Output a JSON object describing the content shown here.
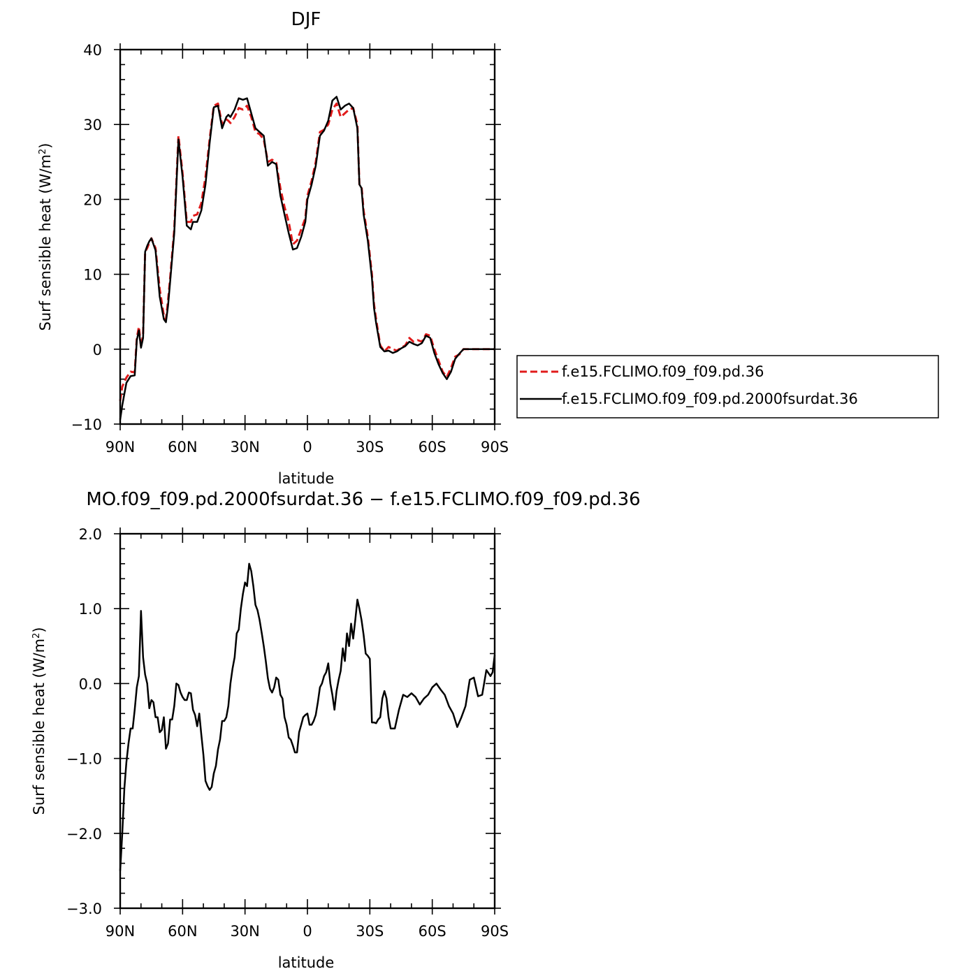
{
  "colors": {
    "control": "#e11b1b",
    "test": "#000000",
    "axis": "#000000"
  },
  "chart_data": [
    {
      "type": "line",
      "title": "DJF",
      "xlabel": "latitude",
      "ylabel": "Surf sensible heat (W/m",
      "ylabel_sup": "2",
      "ylabel_close": ")",
      "xlim": [
        90,
        -90
      ],
      "ylim": [
        -10,
        40
      ],
      "xticks": [
        90,
        60,
        30,
        0,
        -30,
        -60,
        -90
      ],
      "xtick_labels": [
        "90N",
        "60N",
        "30N",
        "0",
        "30S",
        "60S",
        "90S"
      ],
      "yticks": [
        -10,
        0,
        10,
        20,
        30,
        40
      ],
      "ytick_labels": [
        "−10",
        "0",
        "10",
        "20",
        "30",
        "40"
      ],
      "legend_position": "right",
      "series": [
        {
          "name": "f.e15.FCLIMO.f09_f09.pd.36",
          "color": "#e11b1b",
          "dash": true,
          "x": [
            90,
            89,
            87,
            85,
            83,
            82,
            81,
            80,
            79,
            78,
            77,
            76,
            75,
            73,
            71,
            69,
            68,
            67,
            66,
            64,
            62,
            60,
            58,
            56,
            55,
            53,
            51,
            49,
            47,
            45,
            43,
            41,
            39,
            38,
            37,
            35,
            33,
            31,
            29,
            27,
            25,
            23,
            21,
            19,
            17,
            15,
            13,
            11,
            9,
            7,
            5,
            3,
            1,
            0,
            -2,
            -4,
            -6,
            -8,
            -10,
            -12,
            -14,
            -16,
            -18,
            -20,
            -22,
            -24,
            -25,
            -26,
            -27,
            -29,
            -31,
            -32,
            -33,
            -35,
            -37,
            -39,
            -41,
            -43,
            -45,
            -47,
            -49,
            -51,
            -53,
            -55,
            -57,
            -59,
            -61,
            -63,
            -65,
            -67,
            -69,
            -71,
            -73,
            -75,
            -77,
            -79,
            -81,
            -83,
            -85,
            -87,
            -89,
            -90
          ],
          "y": [
            -6.9,
            -5.0,
            -3.8,
            -3.0,
            -3.1,
            1.5,
            3.0,
            0.3,
            2.0,
            13.0,
            13.5,
            14.2,
            14.8,
            13.5,
            8.0,
            4.5,
            4.0,
            6.5,
            9.5,
            16.0,
            28.5,
            23.5,
            17.0,
            17.0,
            17.8,
            18.0,
            19.5,
            23.0,
            28.0,
            32.5,
            32.8,
            30.0,
            30.7,
            30.5,
            30.2,
            31.0,
            32.2,
            32.0,
            32.5,
            31.0,
            29.0,
            28.7,
            28.0,
            25.0,
            25.3,
            24.9,
            21.5,
            19.0,
            17.0,
            14.0,
            14.5,
            16.0,
            17.5,
            20.5,
            22.5,
            25.0,
            29.0,
            29.3,
            30.0,
            32.0,
            32.8,
            31.0,
            31.5,
            32.0,
            32.2,
            30.0,
            22.0,
            21.8,
            18.5,
            15.0,
            10.0,
            6.0,
            4.0,
            0.5,
            -0.3,
            0.3,
            0.0,
            -0.2,
            0.2,
            0.5,
            1.5,
            1.0,
            1.2,
            1.0,
            2.0,
            1.8,
            0.0,
            -1.5,
            -3.0,
            -3.7,
            -2.5,
            -1.0,
            -0.7,
            0,
            0,
            0,
            0,
            0,
            0,
            0,
            0,
            0
          ],
          "_note": "values read from plot"
        },
        {
          "name": "f.e15.FCLIMO.f09_f09.pd.2000fsurdat.36",
          "color": "#000000",
          "dash": false,
          "x": [
            90,
            89,
            87,
            85,
            83,
            82,
            81,
            80,
            79,
            78,
            77,
            76,
            75,
            73,
            71,
            69,
            68,
            67,
            66,
            64,
            62,
            60,
            58,
            56,
            55,
            53,
            51,
            49,
            47,
            45,
            43,
            41,
            39,
            38,
            37,
            35,
            33,
            31,
            29,
            27,
            25,
            23,
            21,
            19,
            17,
            15,
            13,
            11,
            9,
            7,
            5,
            3,
            1,
            0,
            -2,
            -4,
            -6,
            -8,
            -10,
            -12,
            -14,
            -16,
            -18,
            -20,
            -22,
            -24,
            -25,
            -26,
            -27,
            -29,
            -31,
            -32,
            -33,
            -35,
            -37,
            -39,
            -41,
            -43,
            -45,
            -47,
            -49,
            -51,
            -53,
            -55,
            -57,
            -59,
            -61,
            -63,
            -65,
            -67,
            -69,
            -71,
            -73,
            -75,
            -77,
            -79,
            -81,
            -83,
            -85,
            -87,
            -89,
            -90
          ],
          "y": [
            -9.4,
            -7.5,
            -4.5,
            -3.6,
            -3.5,
            1.2,
            2.5,
            0.2,
            1.5,
            13.0,
            13.8,
            14.4,
            14.8,
            13.2,
            7.0,
            4.0,
            3.6,
            5.8,
            9.0,
            15.5,
            28.0,
            23.0,
            16.5,
            16.0,
            17.0,
            17.0,
            18.5,
            22.0,
            27.5,
            32.3,
            32.5,
            29.5,
            31.0,
            31.3,
            31.0,
            32.0,
            33.5,
            33.3,
            33.5,
            31.5,
            29.5,
            29.0,
            28.5,
            24.5,
            25.0,
            24.7,
            20.5,
            18.0,
            15.5,
            13.3,
            13.5,
            15.0,
            17.0,
            20.0,
            22.0,
            24.5,
            28.5,
            29.2,
            30.5,
            33.2,
            33.7,
            32.0,
            32.5,
            32.8,
            32.2,
            29.5,
            22.0,
            21.5,
            18.0,
            14.5,
            9.5,
            5.5,
            3.5,
            0.3,
            -0.3,
            -0.2,
            -0.5,
            -0.3,
            0.1,
            0.4,
            1.0,
            0.7,
            0.5,
            0.8,
            1.8,
            1.5,
            -0.5,
            -2.0,
            -3.2,
            -4.0,
            -3.0,
            -1.3,
            -0.6,
            0,
            0,
            0,
            0,
            0,
            0,
            0,
            0,
            0
          ]
        }
      ]
    },
    {
      "type": "line",
      "title": "MO.f09_f09.pd.2000fsurdat.36 − f.e15.FCLIMO.f09_f09.pd.36",
      "xlabel": "latitude",
      "ylabel": "Surf sensible heat (W/m",
      "ylabel_sup": "2",
      "ylabel_close": ")",
      "xlim": [
        90,
        -90
      ],
      "ylim": [
        -3,
        2
      ],
      "xticks": [
        90,
        60,
        30,
        0,
        -30,
        -60,
        -90
      ],
      "xtick_labels": [
        "90N",
        "60N",
        "30N",
        "0",
        "30S",
        "60S",
        "90S"
      ],
      "yticks": [
        -3,
        -2,
        -1,
        0,
        1,
        2
      ],
      "ytick_labels": [
        "−3.0",
        "−2.0",
        "−1.0",
        "0.0",
        "1.0",
        "2.0"
      ],
      "series": [
        {
          "color": "#000000",
          "dash": false,
          "x": [
            90,
            89,
            88,
            87,
            86,
            85,
            84,
            83,
            82,
            81,
            80,
            79,
            78,
            77,
            76,
            75,
            74,
            73,
            72,
            71,
            70,
            69,
            68,
            67,
            66,
            65,
            64,
            63,
            62,
            61,
            60,
            59,
            58,
            57,
            56,
            55,
            54,
            53,
            52,
            51,
            50,
            49,
            48,
            47,
            46,
            45,
            44,
            43,
            42,
            41,
            40,
            39,
            38,
            37,
            36,
            35,
            34,
            33,
            32,
            31,
            30,
            29,
            28,
            27,
            26,
            25,
            24,
            23,
            22,
            21,
            20,
            19,
            18,
            17,
            16,
            15,
            14,
            13,
            12,
            11,
            10,
            9,
            8,
            7,
            6,
            5,
            4,
            3,
            2,
            1,
            0,
            -1,
            -2,
            -3,
            -4,
            -5,
            -6,
            -7,
            -8,
            -9,
            -10,
            -11,
            -12,
            -13,
            -14,
            -15,
            -16,
            -17,
            -18,
            -19,
            -20,
            -21,
            -22,
            -23,
            -24,
            -25,
            -26,
            -27,
            -28,
            -29,
            -30,
            -31,
            -32,
            -33,
            -34,
            -35,
            -36,
            -37,
            -38,
            -39,
            -40,
            -42,
            -44,
            -46,
            -48,
            -50,
            -52,
            -54,
            -56,
            -58,
            -60,
            -62,
            -64,
            -66,
            -68,
            -70,
            -72,
            -74,
            -76,
            -78,
            -80,
            -82,
            -84,
            -86,
            -88,
            -89,
            -90
          ],
          "y": [
            -2.5,
            -2.0,
            -1.4,
            -1.05,
            -0.8,
            -0.6,
            -0.6,
            -0.35,
            -0.05,
            0.1,
            0.97,
            0.35,
            0.12,
            0.0,
            -0.33,
            -0.22,
            -0.25,
            -0.45,
            -0.45,
            -0.65,
            -0.62,
            -0.45,
            -0.87,
            -0.8,
            -0.48,
            -0.48,
            -0.3,
            0.0,
            -0.02,
            -0.12,
            -0.18,
            -0.22,
            -0.22,
            -0.12,
            -0.13,
            -0.35,
            -0.42,
            -0.57,
            -0.4,
            -0.68,
            -0.95,
            -1.3,
            -1.37,
            -1.42,
            -1.38,
            -1.2,
            -1.1,
            -0.88,
            -0.75,
            -0.5,
            -0.5,
            -0.45,
            -0.3,
            0.0,
            0.2,
            0.35,
            0.67,
            0.72,
            1.0,
            1.2,
            1.35,
            1.3,
            1.6,
            1.5,
            1.3,
            1.05,
            0.98,
            0.85,
            0.68,
            0.5,
            0.3,
            0.07,
            -0.07,
            -0.12,
            -0.05,
            0.08,
            0.05,
            -0.15,
            -0.2,
            -0.45,
            -0.55,
            -0.72,
            -0.75,
            -0.83,
            -0.92,
            -0.92,
            -0.65,
            -0.55,
            -0.45,
            -0.42,
            -0.4,
            -0.55,
            -0.55,
            -0.5,
            -0.42,
            -0.25,
            -0.05,
            0.0,
            0.1,
            0.15,
            0.27,
            0.0,
            -0.15,
            -0.35,
            -0.1,
            0.05,
            0.17,
            0.47,
            0.3,
            0.67,
            0.5,
            0.8,
            0.6,
            0.85,
            1.12,
            1.0,
            0.85,
            0.65,
            0.4,
            0.37,
            0.33,
            -0.52,
            -0.52,
            -0.53,
            -0.48,
            -0.45,
            -0.2,
            -0.1,
            -0.2,
            -0.45,
            -0.6,
            -0.6,
            -0.35,
            -0.15,
            -0.18,
            -0.13,
            -0.18,
            -0.28,
            -0.2,
            -0.15,
            -0.05,
            0.0,
            -0.08,
            -0.15,
            -0.3,
            -0.4,
            -0.58,
            -0.45,
            -0.3,
            0.05,
            0.08,
            -0.17,
            -0.15,
            0.18,
            0.1,
            0.15,
            0.38
          ]
        }
      ]
    }
  ]
}
